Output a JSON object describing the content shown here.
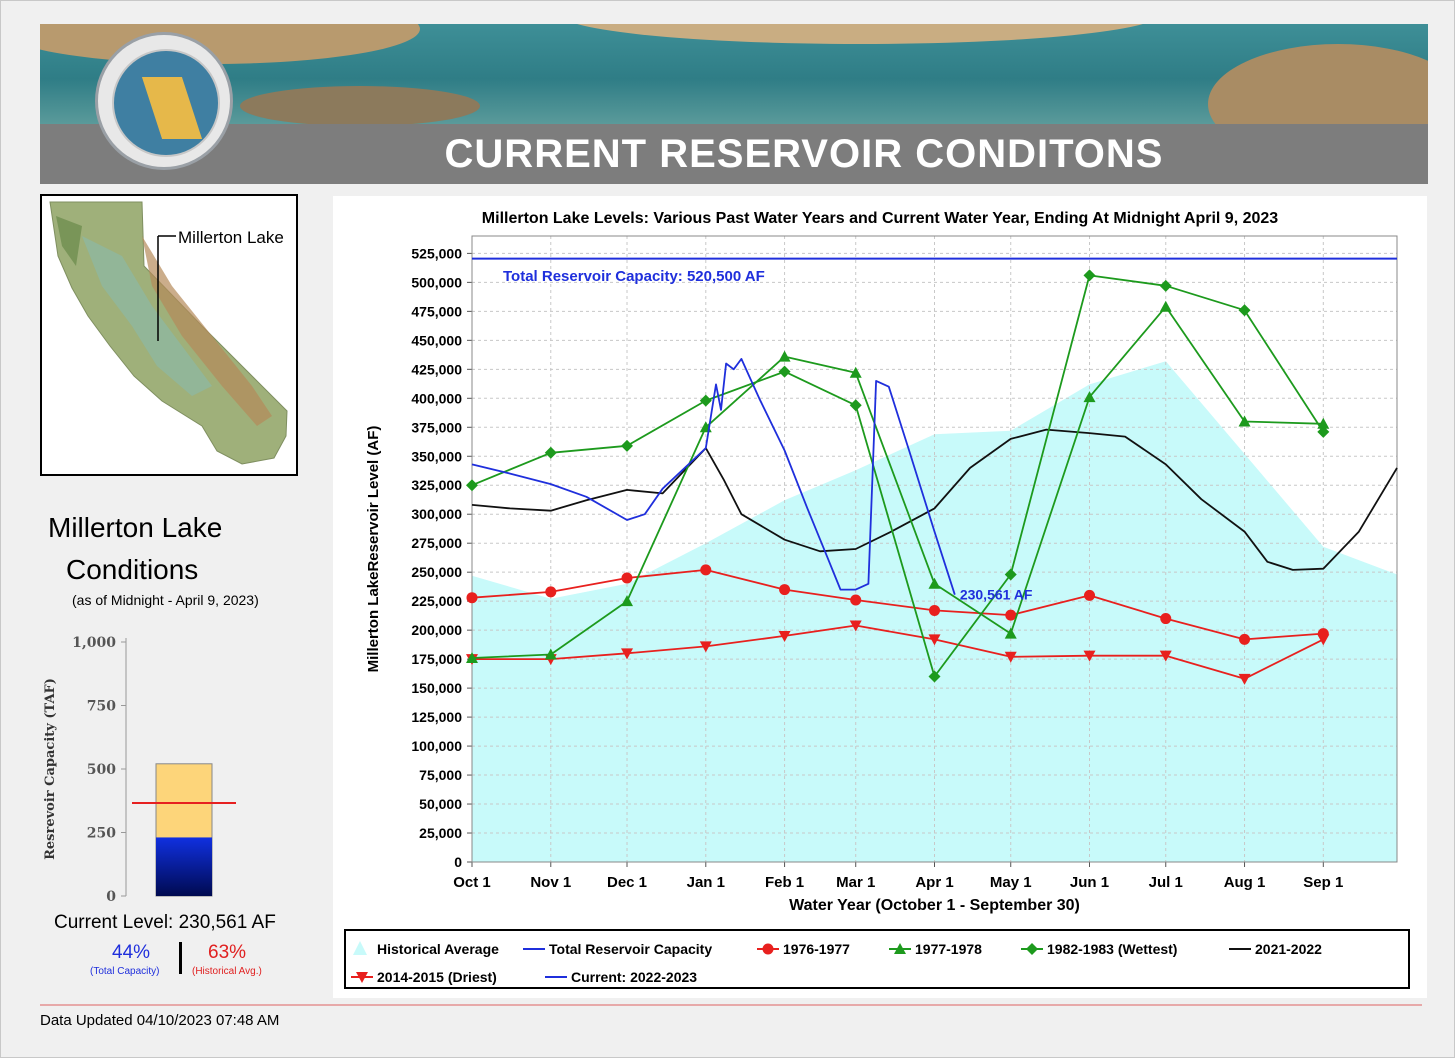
{
  "banner": {
    "title": "CURRENT RESERVOIR CONDITONS"
  },
  "map": {
    "label": "Millerton Lake"
  },
  "conditions": {
    "title_line1": "Millerton Lake",
    "title_line2": "Conditions",
    "subtitle": "(as of Midnight - April 9, 2023)",
    "current_level": "Current Level: 230,561 AF",
    "pct_capacity": "44%",
    "pct_capacity_label": "(Total Capacity)",
    "pct_hist": "63%",
    "pct_hist_label": "(Historical Avg.)"
  },
  "gauge_chart": {
    "type": "bar",
    "ylabel": "Resrevoir Capacity (TAF)",
    "yticks": [
      "1,000",
      "750",
      "500",
      "250",
      "0"
    ],
    "ylim": [
      0,
      1000
    ],
    "capacity_taf": 520.5,
    "current_taf": 230.561,
    "historical_avg_taf": 366
  },
  "chart_data": {
    "type": "line",
    "title": "Millerton Lake Levels: Various Past Water Years and Current Water Year, Ending At Midnight April 9, 2023",
    "xlabel": "Water Year (October 1 - September 30)",
    "ylabel": "Millerton LakeReservoir Level (AF)",
    "ylim": [
      0,
      540000
    ],
    "xlim": [
      "Oct 1",
      "Sep 30"
    ],
    "x_ticks": [
      "Oct 1",
      "Nov 1",
      "Dec 1",
      "Jan 1",
      "Feb 1",
      "Mar 1",
      "Apr 1",
      "May 1",
      "Jun 1",
      "Jul 1",
      "Aug 1",
      "Sep 1"
    ],
    "y_ticks": [
      "0",
      "25,000",
      "50,000",
      "75,000",
      "100,000",
      "125,000",
      "150,000",
      "175,000",
      "200,000",
      "225,000",
      "250,000",
      "275,000",
      "300,000",
      "325,000",
      "350,000",
      "375,000",
      "400,000",
      "425,000",
      "450,000",
      "475,000",
      "500,000",
      "525,000"
    ],
    "capacity_label": "Total Reservoir Capacity: 520,500 AF",
    "current_label": "230,561 AF",
    "grid": true,
    "legend_placement": "bottom",
    "series": [
      {
        "name": "Historical Average",
        "kind": "area",
        "color": "#c8fafa",
        "points": [
          [
            "Oct 1",
            247000
          ],
          [
            "Nov 1",
            227000
          ],
          [
            "Dec 1",
            240000
          ],
          [
            "Jan 1",
            275000
          ],
          [
            "Feb 1",
            312000
          ],
          [
            "Mar 1",
            338000
          ],
          [
            "Apr 1",
            369000
          ],
          [
            "May 1",
            372000
          ],
          [
            "Jun 1",
            412000
          ],
          [
            "Jul 1",
            432000
          ],
          [
            "Aug 1",
            352000
          ],
          [
            "Sep 1",
            272000
          ],
          [
            "Sep 30",
            248000
          ]
        ]
      },
      {
        "name": "Total Reservoir Capacity",
        "kind": "line",
        "color": "#1f2fdc",
        "points": [
          [
            "Oct 1",
            520500
          ],
          [
            "Sep 30",
            520500
          ]
        ]
      },
      {
        "name": "1976-1977",
        "kind": "line",
        "marker": "circle",
        "color": "#e8201e",
        "points": [
          [
            "Oct 1",
            228000
          ],
          [
            "Nov 1",
            233000
          ],
          [
            "Dec 1",
            245000
          ],
          [
            "Jan 1",
            252000
          ],
          [
            "Feb 1",
            235000
          ],
          [
            "Mar 1",
            226000
          ],
          [
            "Apr 1",
            217000
          ],
          [
            "May 1",
            213000
          ],
          [
            "Jun 1",
            230000
          ],
          [
            "Jul 1",
            210000
          ],
          [
            "Aug 1",
            192000
          ],
          [
            "Sep 1",
            197000
          ]
        ]
      },
      {
        "name": "1977-1978",
        "kind": "line",
        "marker": "triangle-up",
        "color": "#1d9a1d",
        "points": [
          [
            "Oct 1",
            176000
          ],
          [
            "Nov 1",
            179000
          ],
          [
            "Dec 1",
            225000
          ],
          [
            "Jan 1",
            375000
          ],
          [
            "Feb 1",
            436000
          ],
          [
            "Mar 1",
            422000
          ],
          [
            "Apr 1",
            240000
          ],
          [
            "May 1",
            197000
          ],
          [
            "Jun 1",
            401000
          ],
          [
            "Jul 1",
            479000
          ],
          [
            "Aug 1",
            380000
          ],
          [
            "Sep 1",
            378000
          ]
        ]
      },
      {
        "name": "1982-1983 (Wettest)",
        "kind": "line",
        "marker": "diamond",
        "color": "#1d9a1d",
        "points": [
          [
            "Oct 1",
            325000
          ],
          [
            "Nov 1",
            353000
          ],
          [
            "Dec 1",
            359000
          ],
          [
            "Jan 1",
            398000
          ],
          [
            "Feb 1",
            423000
          ],
          [
            "Mar 1",
            394000
          ],
          [
            "Apr 1",
            160000
          ],
          [
            "May 1",
            248000
          ],
          [
            "Jun 1",
            506000
          ],
          [
            "Jul 1",
            497000
          ],
          [
            "Aug 1",
            476000
          ],
          [
            "Sep 1",
            371000
          ]
        ]
      },
      {
        "name": "2021-2022",
        "kind": "line",
        "color": "#111111",
        "points": [
          [
            "Oct 1",
            308000
          ],
          [
            "Oct 16",
            305000
          ],
          [
            "Nov 1",
            303000
          ],
          [
            "Nov 15",
            312000
          ],
          [
            "Dec 1",
            321000
          ],
          [
            "Dec 15",
            318000
          ],
          [
            "Jan 1",
            357000
          ],
          [
            "Jan 8",
            330000
          ],
          [
            "Jan 15",
            300000
          ],
          [
            "Feb 1",
            278000
          ],
          [
            "Feb 15",
            268000
          ],
          [
            "Mar 1",
            270000
          ],
          [
            "Mar 15",
            285000
          ],
          [
            "Apr 1",
            305000
          ],
          [
            "Apr 15",
            340000
          ],
          [
            "May 1",
            365000
          ],
          [
            "May 15",
            373000
          ],
          [
            "Jun 1",
            370000
          ],
          [
            "Jun 15",
            367000
          ],
          [
            "Jul 1",
            343000
          ],
          [
            "Jul 15",
            313000
          ],
          [
            "Aug 1",
            285000
          ],
          [
            "Aug 10",
            259000
          ],
          [
            "Aug 20",
            252000
          ],
          [
            "Sep 1",
            253000
          ],
          [
            "Sep 15",
            285000
          ],
          [
            "Sep 30",
            340000
          ]
        ]
      },
      {
        "name": "2014-2015 (Driest)",
        "kind": "line",
        "marker": "triangle-down",
        "color": "#e8201e",
        "points": [
          [
            "Oct 1",
            175000
          ],
          [
            "Nov 1",
            175000
          ],
          [
            "Dec 1",
            180000
          ],
          [
            "Jan 1",
            186000
          ],
          [
            "Feb 1",
            195000
          ],
          [
            "Mar 1",
            204000
          ],
          [
            "Apr 1",
            192000
          ],
          [
            "May 1",
            177000
          ],
          [
            "Jun 1",
            178000
          ],
          [
            "Jul 1",
            178000
          ],
          [
            "Aug 1",
            158000
          ],
          [
            "Sep 1",
            192000
          ]
        ]
      },
      {
        "name": "Current: 2022-2023",
        "kind": "line",
        "color": "#1f2fdc",
        "points": [
          [
            "Oct 1",
            343000
          ],
          [
            "Oct 16",
            335000
          ],
          [
            "Nov 1",
            326000
          ],
          [
            "Nov 15",
            315000
          ],
          [
            "Dec 1",
            295000
          ],
          [
            "Dec 8",
            300000
          ],
          [
            "Dec 15",
            322000
          ],
          [
            "Jan 1",
            357000
          ],
          [
            "Jan 5",
            412000
          ],
          [
            "Jan 7",
            390000
          ],
          [
            "Jan 9",
            430000
          ],
          [
            "Jan 12",
            425000
          ],
          [
            "Jan 15",
            434000
          ],
          [
            "Jan 22",
            400000
          ],
          [
            "Feb 1",
            355000
          ],
          [
            "Feb 10",
            305000
          ],
          [
            "Feb 18",
            262000
          ],
          [
            "Feb 23",
            235000
          ],
          [
            "Mar 1",
            235000
          ],
          [
            "Mar 6",
            240000
          ],
          [
            "Mar 9",
            415000
          ],
          [
            "Mar 14",
            410000
          ],
          [
            "Mar 22",
            355000
          ],
          [
            "Apr 1",
            285000
          ],
          [
            "Apr 9",
            230561
          ]
        ]
      }
    ]
  },
  "legend": {
    "items": [
      "Historical Average",
      "Total Reservoir Capacity",
      "1976-1977",
      "1977-1978",
      "1982-1983 (Wettest)",
      "2021-2022",
      "2014-2015 (Driest)",
      "Current: 2022-2023"
    ]
  },
  "footer": {
    "updated": "Data Updated 04/10/2023 07:48 AM"
  }
}
